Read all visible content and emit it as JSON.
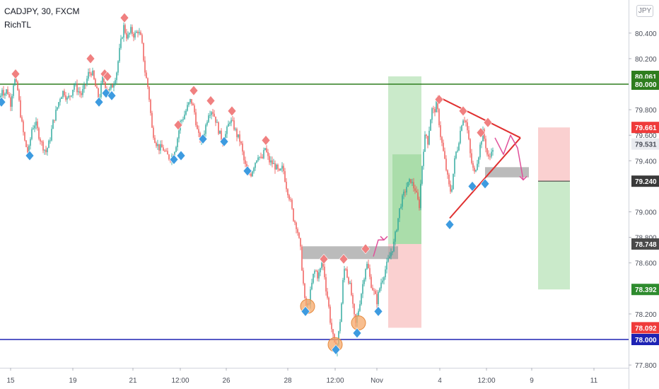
{
  "header": {
    "symbol_line": "CADJPY, 30, FXCM",
    "indicator": "RichTL",
    "currency_badge": "JPY"
  },
  "colors": {
    "bull": "#26a69a",
    "bear": "#ef5350",
    "support_line": "#1e23b4",
    "resistance_line": "#2e7d1e",
    "peak_marker": "#f08080",
    "trough_marker": "#3d9be0",
    "triangle": "#e03030",
    "highlight_circle": "#f5a86a",
    "zone_gray": "#9e9e9e",
    "target_green": "#b8e3b8",
    "stop_red": "#f8c0c0"
  },
  "chart_data": {
    "type": "candlestick",
    "title": "CADJPY, 30, FXCM",
    "ylim": [
      77.7,
      80.52
    ],
    "y_ticks": [
      "80.400",
      "80.200",
      "79.800",
      "79.600",
      "79.400",
      "79.000",
      "78.800",
      "78.600",
      "78.200",
      "77.800"
    ],
    "x_ticks": [
      "15",
      "19",
      "21",
      "12:00",
      "26",
      "28",
      "12:00",
      "Nov",
      "4",
      "12:00",
      "9",
      "11"
    ],
    "horizontal_lines": [
      {
        "price": 80.0,
        "label": "80.000",
        "color": "#2e7d1e"
      },
      {
        "price": 78.0,
        "label": "78.000",
        "color": "#1e23b4"
      }
    ],
    "price_badges": [
      {
        "label": "80.061",
        "price": 80.061,
        "bg": "#2e7d1e"
      },
      {
        "label": "80.000",
        "price": 80.0,
        "bg": "#2e7d1e"
      },
      {
        "label": "79.661",
        "price": 79.661,
        "bg": "#ef3b3b"
      },
      {
        "label": "79.531",
        "price": 79.531,
        "bg": "#e9ebf0",
        "fg": "#4a4e59"
      },
      {
        "label": "79.240",
        "price": 79.24,
        "bg": "#3a3a3a"
      },
      {
        "label": "78.748",
        "price": 78.748,
        "bg": "#4a4a4a"
      },
      {
        "label": "78.392",
        "price": 78.392,
        "bg": "#2e8b2e"
      },
      {
        "label": "78.092",
        "price": 78.092,
        "bg": "#ef3b3b"
      },
      {
        "label": "78.000",
        "price": 78.0,
        "bg": "#1e23b4"
      }
    ],
    "price_path": [
      [
        0,
        79.88
      ],
      [
        3,
        79.97
      ],
      [
        6,
        79.92
      ],
      [
        10,
        79.96
      ],
      [
        15,
        79.85
      ],
      [
        20,
        80.05
      ],
      [
        25,
        79.95
      ],
      [
        30,
        79.72
      ],
      [
        35,
        79.55
      ],
      [
        40,
        79.45
      ],
      [
        45,
        79.65
      ],
      [
        50,
        79.7
      ],
      [
        55,
        79.6
      ],
      [
        60,
        79.52
      ],
      [
        65,
        79.47
      ],
      [
        70,
        79.55
      ],
      [
        75,
        79.7
      ],
      [
        80,
        79.8
      ],
      [
        85,
        79.9
      ],
      [
        90,
        79.95
      ],
      [
        95,
        79.88
      ],
      [
        100,
        79.92
      ],
      [
        105,
        80.0
      ],
      [
        110,
        79.95
      ],
      [
        115,
        79.92
      ],
      [
        120,
        79.98
      ],
      [
        125,
        80.08
      ],
      [
        130,
        80.1
      ],
      [
        135,
        79.98
      ],
      [
        140,
        79.88
      ],
      [
        145,
        80.05
      ],
      [
        150,
        79.98
      ],
      [
        155,
        79.95
      ],
      [
        160,
        80.0
      ],
      [
        165,
        80.1
      ],
      [
        170,
        80.3
      ],
      [
        175,
        80.45
      ],
      [
        180,
        80.36
      ],
      [
        185,
        80.42
      ],
      [
        190,
        80.38
      ],
      [
        195,
        80.42
      ],
      [
        200,
        80.35
      ],
      [
        205,
        80.1
      ],
      [
        210,
        79.95
      ],
      [
        215,
        79.65
      ],
      [
        220,
        79.55
      ],
      [
        225,
        79.5
      ],
      [
        230,
        79.5
      ],
      [
        235,
        79.45
      ],
      [
        240,
        79.42
      ],
      [
        245,
        79.45
      ],
      [
        250,
        79.55
      ],
      [
        255,
        79.7
      ],
      [
        260,
        79.75
      ],
      [
        265,
        79.82
      ],
      [
        270,
        79.88
      ],
      [
        275,
        79.78
      ],
      [
        280,
        79.6
      ],
      [
        285,
        79.55
      ],
      [
        290,
        79.65
      ],
      [
        295,
        79.78
      ],
      [
        300,
        79.8
      ],
      [
        305,
        79.72
      ],
      [
        310,
        79.62
      ],
      [
        315,
        79.55
      ],
      [
        320,
        79.62
      ],
      [
        325,
        79.72
      ],
      [
        330,
        79.68
      ],
      [
        335,
        79.6
      ],
      [
        340,
        79.55
      ],
      [
        345,
        79.4
      ],
      [
        350,
        79.3
      ],
      [
        355,
        79.3
      ],
      [
        360,
        79.38
      ],
      [
        365,
        79.45
      ],
      [
        370,
        79.4
      ],
      [
        375,
        79.5
      ],
      [
        380,
        79.4
      ],
      [
        385,
        79.38
      ],
      [
        390,
        79.35
      ],
      [
        395,
        79.3
      ],
      [
        400,
        79.35
      ],
      [
        405,
        79.2
      ],
      [
        410,
        79.1
      ],
      [
        415,
        78.95
      ],
      [
        420,
        78.88
      ],
      [
        425,
        78.7
      ],
      [
        428,
        78.5
      ],
      [
        431,
        78.3
      ],
      [
        434,
        78.25
      ],
      [
        437,
        78.3
      ],
      [
        440,
        78.4
      ],
      [
        443,
        78.5
      ],
      [
        446,
        78.55
      ],
      [
        449,
        78.5
      ],
      [
        452,
        78.52
      ],
      [
        455,
        78.6
      ],
      [
        458,
        78.55
      ],
      [
        461,
        78.4
      ],
      [
        464,
        78.3
      ],
      [
        467,
        78.15
      ],
      [
        470,
        78.05
      ],
      [
        473,
        77.95
      ],
      [
        476,
        77.92
      ],
      [
        479,
        78.05
      ],
      [
        482,
        78.2
      ],
      [
        485,
        78.45
      ],
      [
        488,
        78.6
      ],
      [
        491,
        78.5
      ],
      [
        494,
        78.45
      ],
      [
        497,
        78.35
      ],
      [
        500,
        78.2
      ],
      [
        503,
        78.12
      ],
      [
        506,
        78.2
      ],
      [
        509,
        78.3
      ],
      [
        512,
        78.4
      ],
      [
        515,
        78.5
      ],
      [
        518,
        78.6
      ],
      [
        521,
        78.55
      ],
      [
        524,
        78.45
      ],
      [
        527,
        78.4
      ],
      [
        530,
        78.35
      ],
      [
        533,
        78.3
      ],
      [
        536,
        78.38
      ],
      [
        539,
        78.45
      ],
      [
        542,
        78.5
      ],
      [
        545,
        78.55
      ],
      [
        548,
        78.6
      ],
      [
        551,
        78.65
      ],
      [
        554,
        78.7
      ],
      [
        557,
        78.75
      ],
      [
        560,
        78.85
      ],
      [
        563,
        78.95
      ],
      [
        566,
        79.05
      ],
      [
        569,
        79.1
      ],
      [
        572,
        79.15
      ],
      [
        575,
        79.2
      ],
      [
        578,
        79.22
      ],
      [
        581,
        79.25
      ],
      [
        584,
        79.2
      ],
      [
        587,
        79.18
      ],
      [
        590,
        79.1
      ],
      [
        593,
        79.05
      ],
      [
        596,
        79.3
      ],
      [
        599,
        79.5
      ],
      [
        602,
        79.62
      ],
      [
        605,
        79.55
      ],
      [
        608,
        79.7
      ],
      [
        611,
        79.8
      ],
      [
        614,
        79.78
      ],
      [
        617,
        79.85
      ],
      [
        620,
        79.75
      ],
      [
        623,
        79.6
      ],
      [
        626,
        79.5
      ],
      [
        629,
        79.4
      ],
      [
        632,
        79.3
      ],
      [
        635,
        79.2
      ],
      [
        638,
        79.15
      ],
      [
        641,
        79.3
      ],
      [
        644,
        79.45
      ],
      [
        647,
        79.5
      ],
      [
        650,
        79.6
      ],
      [
        653,
        79.7
      ],
      [
        656,
        79.75
      ],
      [
        659,
        79.7
      ],
      [
        662,
        79.6
      ],
      [
        665,
        79.45
      ],
      [
        668,
        79.35
      ],
      [
        671,
        79.3
      ],
      [
        674,
        79.38
      ],
      [
        677,
        79.45
      ],
      [
        680,
        79.55
      ],
      [
        683,
        79.62
      ],
      [
        686,
        79.55
      ],
      [
        689,
        79.45
      ],
      [
        692,
        79.4
      ],
      [
        695,
        79.5
      ],
      [
        698,
        79.45
      ]
    ],
    "peaks": [
      [
        22,
        80.08
      ],
      [
        128,
        80.2
      ],
      [
        148,
        80.08
      ],
      [
        152,
        80.06
      ],
      [
        176,
        80.52
      ],
      [
        252,
        79.68
      ],
      [
        274,
        79.95
      ],
      [
        298,
        79.87
      ],
      [
        328,
        79.79
      ],
      [
        376,
        79.56
      ],
      [
        458,
        78.63
      ],
      [
        486,
        78.63
      ],
      [
        517,
        78.71
      ],
      [
        621,
        79.88
      ],
      [
        655,
        79.79
      ],
      [
        680,
        79.62
      ],
      [
        690,
        79.7
      ]
    ],
    "troughs": [
      [
        2,
        79.86
      ],
      [
        42,
        79.44
      ],
      [
        140,
        79.86
      ],
      [
        150,
        79.93
      ],
      [
        158,
        79.91
      ],
      [
        246,
        79.41
      ],
      [
        256,
        79.44
      ],
      [
        287,
        79.57
      ],
      [
        317,
        79.55
      ],
      [
        350,
        79.32
      ],
      [
        432,
        78.22
      ],
      [
        475,
        77.92
      ],
      [
        505,
        78.05
      ],
      [
        535,
        78.22
      ],
      [
        636,
        78.9
      ],
      [
        668,
        79.2
      ],
      [
        686,
        79.22
      ]
    ],
    "circles": [
      [
        435,
        78.26
      ],
      [
        474,
        77.96
      ],
      [
        507,
        78.13
      ]
    ],
    "gray_zones": [
      {
        "x1": 428,
        "x2": 563,
        "y1": 78.73,
        "y2": 78.63
      },
      {
        "x1": 686,
        "x2": 748,
        "y1": 79.35,
        "y2": 79.27
      }
    ],
    "long_position": {
      "x1": 549,
      "x2": 596,
      "target": 80.061,
      "entry": 78.748,
      "stop": 78.092
    },
    "short_position": {
      "x1": 761,
      "x2": 806,
      "stop": 79.661,
      "entry": 79.24,
      "target": 78.392
    },
    "triangle": [
      [
        620,
        79.9
      ],
      [
        736,
        79.58
      ],
      [
        636,
        78.95
      ]
    ],
    "arrows": [
      {
        "points": [
          [
            528,
            78.65
          ],
          [
            535,
            78.78
          ],
          [
            543,
            78.78
          ]
        ],
        "color": "#e0509a"
      },
      {
        "points": [
          [
            700,
            79.58
          ],
          [
            712,
            79.45
          ],
          [
            722,
            79.6
          ],
          [
            732,
            79.5
          ],
          [
            740,
            79.25
          ]
        ],
        "color": "#e0509a"
      }
    ]
  }
}
